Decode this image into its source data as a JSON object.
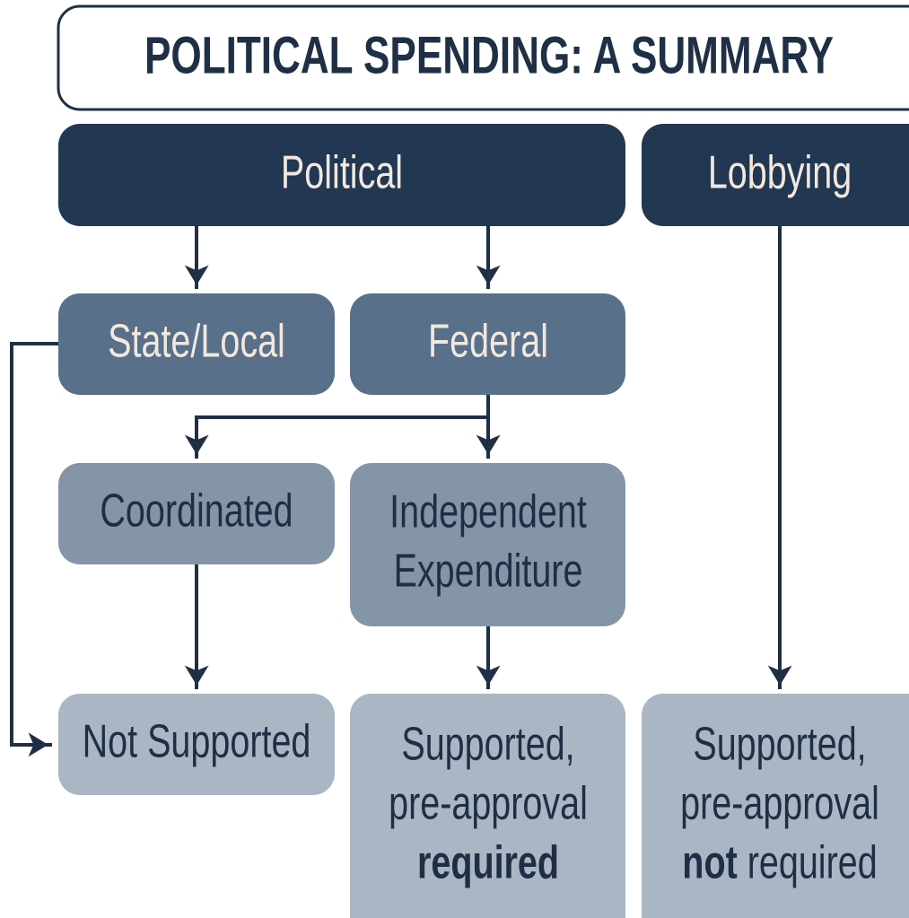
{
  "title": "POLITICAL SPENDING: A SUMMARY",
  "nodes": [
    {
      "lines": [
        [
          {
            "text": "Political"
          }
        ]
      ]
    },
    {
      "lines": [
        [
          {
            "text": "Lobbying"
          }
        ]
      ]
    },
    {
      "lines": [
        [
          {
            "text": "State/Local"
          }
        ]
      ]
    },
    {
      "lines": [
        [
          {
            "text": "Federal"
          }
        ]
      ]
    },
    {
      "lines": [
        [
          {
            "text": "Coordinated"
          }
        ]
      ]
    },
    {
      "lines": [
        [
          {
            "text": "Independent"
          }
        ],
        [
          {
            "text": "Expenditure"
          }
        ]
      ]
    },
    {
      "lines": [
        [
          {
            "text": "Not Supported"
          }
        ]
      ]
    },
    {
      "lines": [
        [
          {
            "text": "Supported,"
          }
        ],
        [
          {
            "text": "pre-approval"
          }
        ],
        [
          {
            "text": "required",
            "bold": true
          }
        ]
      ]
    },
    {
      "lines": [
        [
          {
            "text": "Supported,"
          }
        ],
        [
          {
            "text": "pre-approval"
          }
        ],
        [
          {
            "text": "not",
            "bold": true
          },
          {
            "text": " required"
          }
        ]
      ]
    }
  ]
}
